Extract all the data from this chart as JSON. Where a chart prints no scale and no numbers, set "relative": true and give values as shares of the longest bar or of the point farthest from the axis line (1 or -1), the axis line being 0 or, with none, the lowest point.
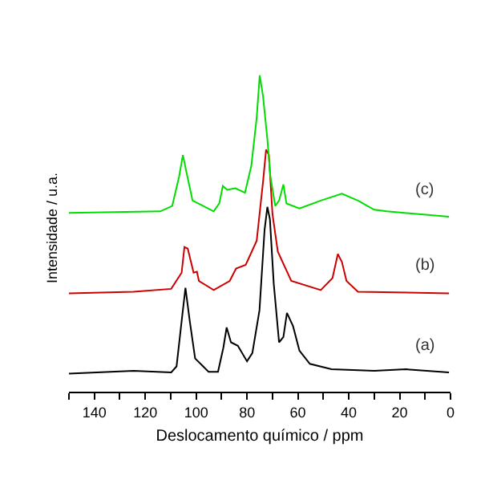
{
  "chart_data": {
    "type": "line",
    "relative": true,
    "xlabel": "Deslocamento químico / ppm",
    "ylabel": "Intensidade / u.a.",
    "xlim": [
      150,
      0
    ],
    "xticks": [
      {
        "value": 150,
        "label": null
      },
      140,
      {
        "value": 130,
        "label": null
      },
      120,
      {
        "value": 110,
        "label": null
      },
      100,
      {
        "value": 90,
        "label": null
      },
      80,
      {
        "value": 70,
        "label": null
      },
      60,
      {
        "value": 50,
        "label": null
      },
      40,
      {
        "value": 30,
        "label": null
      },
      20,
      {
        "value": 10,
        "label": null
      },
      0
    ],
    "grid": false,
    "legend": false,
    "tick_labels": "x",
    "marker": "none",
    "line_style": "solid",
    "series": [
      {
        "name": "(a)",
        "color": "#000000",
        "x": [
          150,
          124.6,
          109.8,
          107.7,
          105.7,
          104.2,
          102.5,
          100.4,
          95.1,
          91.4,
          89.3,
          88.0,
          86.3,
          83.6,
          80.0,
          77.9,
          75.1,
          73.1,
          72.0,
          71.0,
          69.5,
          67.4,
          65.7,
          64.3,
          61.9,
          59.4,
          55.3,
          46.8,
          30.0,
          17.5,
          0.6
        ],
        "values": [
          0.057,
          0.066,
          0.061,
          0.08,
          0.223,
          0.328,
          0.223,
          0.105,
          0.063,
          0.063,
          0.139,
          0.203,
          0.156,
          0.145,
          0.096,
          0.122,
          0.257,
          0.511,
          0.584,
          0.545,
          0.342,
          0.156,
          0.173,
          0.249,
          0.207,
          0.13,
          0.088,
          0.071,
          0.066,
          0.071,
          0.061
        ]
      },
      {
        "name": "(b)",
        "color": "#cc0000",
        "x": [
          150,
          124.6,
          109.8,
          105.7,
          104.6,
          103.3,
          101.0,
          99.7,
          98.9,
          93.1,
          86.8,
          84.3,
          80.5,
          76.2,
          73.7,
          72.5,
          71.4,
          70.0,
          67.9,
          62.6,
          51.0,
          46.4,
          44.3,
          42.7,
          40.9,
          36.4,
          0.6
        ],
        "values": [
          0.311,
          0.316,
          0.325,
          0.376,
          0.457,
          0.452,
          0.376,
          0.379,
          0.35,
          0.321,
          0.35,
          0.389,
          0.401,
          0.477,
          0.663,
          0.765,
          0.748,
          0.562,
          0.443,
          0.35,
          0.321,
          0.359,
          0.435,
          0.41,
          0.35,
          0.316,
          0.311
        ]
      },
      {
        "name": "(c)",
        "color": "#00dd00",
        "x": [
          150,
          114.1,
          109.4,
          106.7,
          105.2,
          103.9,
          101.4,
          97.2,
          93.1,
          90.9,
          89.5,
          87.8,
          84.6,
          80.8,
          78.3,
          76.2,
          75.0,
          73.7,
          72.0,
          70.8,
          68.9,
          67.4,
          65.7,
          64.5,
          59.4,
          51.0,
          42.7,
          36.4,
          30.0,
          25.0,
          0.6
        ],
        "values": [
          0.565,
          0.57,
          0.587,
          0.68,
          0.748,
          0.697,
          0.604,
          0.587,
          0.57,
          0.595,
          0.65,
          0.638,
          0.643,
          0.629,
          0.714,
          0.866,
          1.0,
          0.934,
          0.798,
          0.68,
          0.587,
          0.604,
          0.655,
          0.595,
          0.579,
          0.604,
          0.626,
          0.604,
          0.575,
          0.57,
          0.553
        ]
      }
    ]
  }
}
